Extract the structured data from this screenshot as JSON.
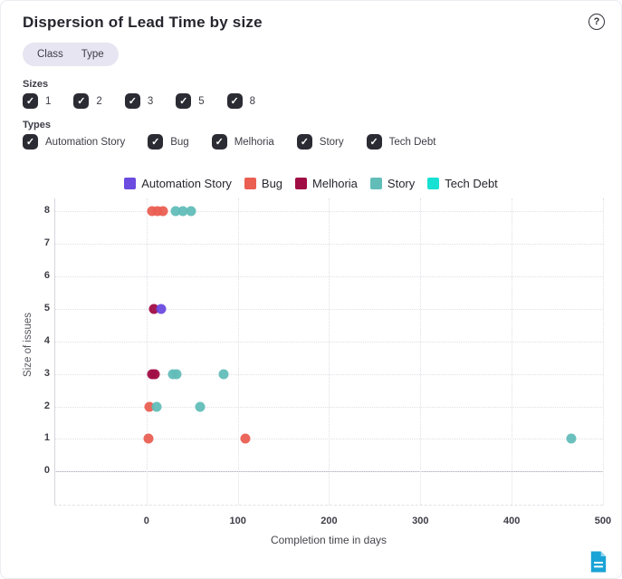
{
  "header": {
    "title": "Dispersion of Lead Time by size",
    "help_icon": "question-mark-circle-icon",
    "help_glyph": "?"
  },
  "toggle": {
    "options": [
      "Class",
      "Type"
    ]
  },
  "filters": {
    "sizes": {
      "label": "Sizes",
      "options": [
        "1",
        "2",
        "3",
        "5",
        "8"
      ],
      "checked": [
        true,
        true,
        true,
        true,
        true
      ]
    },
    "types": {
      "label": "Types",
      "options": [
        "Automation Story",
        "Bug",
        "Melhoria",
        "Story",
        "Tech Debt"
      ],
      "checked": [
        true,
        true,
        true,
        true,
        true
      ]
    }
  },
  "chart_data": {
    "type": "scatter",
    "title": "Dispersion of Lead Time by size",
    "xlabel": "Completion time in days",
    "ylabel": "Size of issues",
    "xlim": [
      -100,
      501
    ],
    "ylim": [
      -1.05,
      8.4
    ],
    "x_ticks": [
      0,
      100,
      200,
      300,
      400,
      500
    ],
    "y_ticks": [
      0,
      1,
      2,
      3,
      4,
      5,
      6,
      7,
      8
    ],
    "grid": true,
    "legend_position": "top",
    "check_glyph": "✓",
    "series": [
      {
        "name": "Automation Story",
        "color": "#6b4be0",
        "points": [
          [
            16,
            5
          ]
        ]
      },
      {
        "name": "Bug",
        "color": "#ea5f52",
        "points": [
          [
            6,
            8
          ],
          [
            12,
            8
          ],
          [
            18,
            8
          ],
          [
            3,
            2
          ],
          [
            2,
            1
          ],
          [
            108,
            1
          ]
        ]
      },
      {
        "name": "Melhoria",
        "color": "#a00d44",
        "points": [
          [
            8,
            5
          ],
          [
            6,
            3
          ],
          [
            9,
            3
          ]
        ]
      },
      {
        "name": "Story",
        "color": "#62bdb8",
        "points": [
          [
            32,
            8
          ],
          [
            40,
            8
          ],
          [
            49,
            8
          ],
          [
            29,
            3
          ],
          [
            33,
            3
          ],
          [
            84,
            3
          ],
          [
            11,
            2
          ],
          [
            59,
            2
          ],
          [
            465,
            1
          ]
        ]
      },
      {
        "name": "Tech Debt",
        "color": "#16e1d3",
        "points": []
      }
    ],
    "draw_order": [
      "Bug",
      "Melhoria",
      "Automation Story",
      "Story",
      "Tech Debt"
    ]
  },
  "footer": {
    "export_icon": "document-export-icon",
    "export_color": "#1aa3d6"
  }
}
